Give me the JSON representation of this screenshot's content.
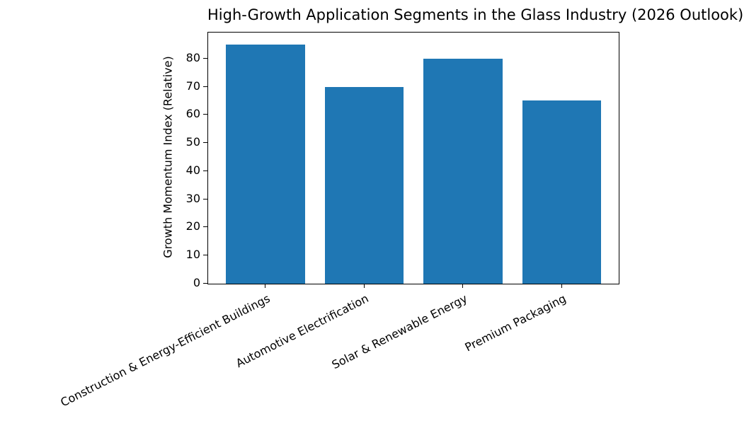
{
  "chart_data": {
    "type": "bar",
    "title": "High-Growth Application Segments in the Glass Industry (2026 Outlook)",
    "ylabel": "Growth Momentum Index (Relative)",
    "xlabel": "",
    "categories": [
      "Construction & Energy-Efficient Buildings",
      "Automotive Electrification",
      "Solar & Renewable Energy",
      "Premium Packaging"
    ],
    "values": [
      85,
      70,
      80,
      65
    ],
    "yticks": [
      0,
      10,
      20,
      30,
      40,
      50,
      60,
      70,
      80
    ],
    "ylim": [
      0,
      89.25
    ],
    "bar_color": "#1f77b4",
    "background_color": "#ffffff",
    "grid": false,
    "legend_position": "none"
  }
}
